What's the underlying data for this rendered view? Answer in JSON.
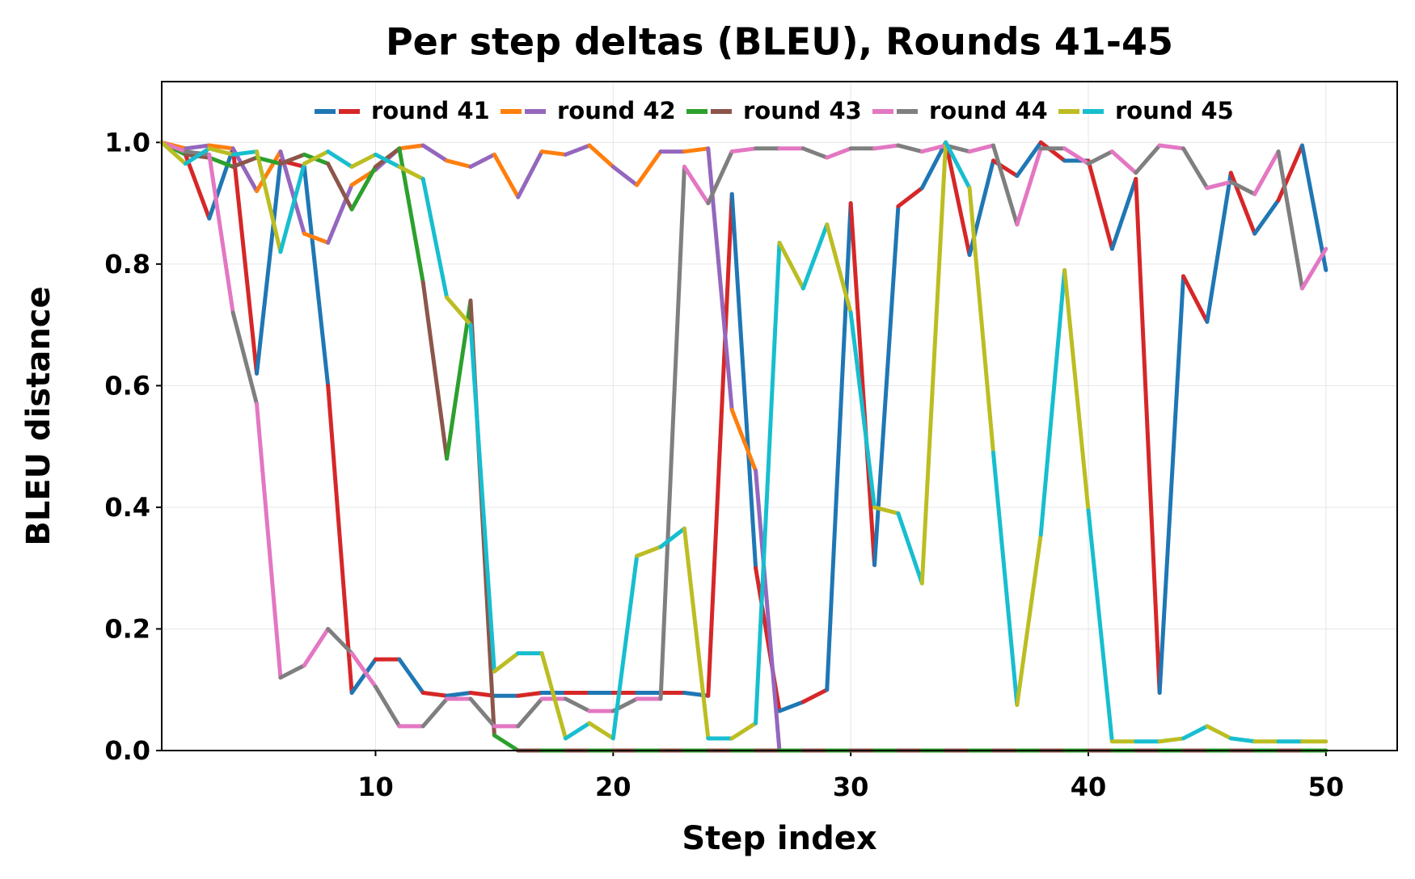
{
  "chart_data": {
    "type": "line",
    "title": "Per step deltas (BLEU), Rounds 41-45",
    "xlabel": "Step index",
    "ylabel": "BLEU distance",
    "x": [
      1,
      2,
      3,
      4,
      5,
      6,
      7,
      8,
      9,
      10,
      11,
      12,
      13,
      14,
      15,
      16,
      17,
      18,
      19,
      20,
      21,
      22,
      23,
      24,
      25,
      26,
      27,
      28,
      29,
      30,
      31,
      32,
      33,
      34,
      35,
      36,
      37,
      38,
      39,
      40,
      41,
      42,
      43,
      44,
      45,
      46,
      47,
      48,
      49,
      50
    ],
    "xlim": [
      1,
      53
    ],
    "xticks": [
      10,
      20,
      30,
      40,
      50
    ],
    "ylim": [
      0,
      1.1
    ],
    "yticks": [
      {
        "value": 0,
        "label": "0.0"
      },
      0.2,
      0.4,
      0.6,
      0.8,
      {
        "value": 1,
        "label": "1.0"
      }
    ],
    "grid": true,
    "legend": "upper center",
    "series": [
      {
        "name": "round 41",
        "colors": [
          "#1f77b4",
          "#d62728"
        ],
        "values": [
          1.0,
          0.98,
          0.875,
          0.99,
          0.62,
          0.97,
          0.96,
          0.6,
          0.095,
          0.15,
          0.15,
          0.095,
          0.09,
          0.095,
          0.09,
          0.09,
          0.095,
          0.095,
          0.095,
          0.095,
          0.095,
          0.095,
          0.095,
          0.09,
          0.915,
          0.3,
          0.065,
          0.08,
          0.1,
          0.9,
          0.305,
          0.895,
          0.925,
          1.0,
          0.815,
          0.97,
          0.945,
          1.0,
          0.97,
          0.97,
          0.825,
          0.94,
          0.095,
          0.78,
          0.705,
          0.95,
          0.85,
          0.905,
          0.995,
          0.79
        ]
      },
      {
        "name": "round 42",
        "colors": [
          "#ff7f0e",
          "#9467bd"
        ],
        "values": [
          1.0,
          0.99,
          0.995,
          0.99,
          0.92,
          0.985,
          0.85,
          0.835,
          0.93,
          0.955,
          0.99,
          0.995,
          0.97,
          0.96,
          0.98,
          0.91,
          0.985,
          0.98,
          0.995,
          0.96,
          0.93,
          0.985,
          0.985,
          0.99,
          0.56,
          0.46,
          0,
          0,
          0,
          0,
          0,
          0,
          0,
          0,
          0,
          0,
          0,
          0,
          0,
          0,
          0,
          0,
          0,
          0,
          0,
          0,
          0,
          0,
          0,
          0
        ]
      },
      {
        "name": "round 43",
        "colors": [
          "#2ca02c",
          "#8c564b"
        ],
        "values": [
          1.0,
          0.98,
          0.975,
          0.96,
          0.975,
          0.965,
          0.98,
          0.965,
          0.89,
          0.96,
          0.99,
          0.77,
          0.48,
          0.74,
          0.025,
          0,
          0,
          0,
          0,
          0,
          0,
          0,
          0,
          0,
          0,
          0,
          0,
          0,
          0,
          0,
          0,
          0,
          0,
          0,
          0,
          0,
          0,
          0,
          0,
          0,
          0,
          0,
          0,
          0,
          0,
          0,
          0,
          0,
          0,
          0
        ]
      },
      {
        "name": "round 44",
        "colors": [
          "#e377c2",
          "#7f7f7f"
        ],
        "values": [
          1.0,
          0.985,
          0.98,
          0.72,
          0.57,
          0.12,
          0.14,
          0.2,
          0.16,
          0.105,
          0.04,
          0.04,
          0.085,
          0.085,
          0.04,
          0.04,
          0.085,
          0.085,
          0.065,
          0.065,
          0.085,
          0.085,
          0.96,
          0.9,
          0.985,
          0.99,
          0.99,
          0.99,
          0.975,
          0.99,
          0.99,
          0.995,
          0.985,
          0.995,
          0.985,
          0.995,
          0.865,
          0.99,
          0.99,
          0.965,
          0.985,
          0.95,
          0.995,
          0.99,
          0.925,
          0.935,
          0.915,
          0.985,
          0.76,
          0.825
        ]
      },
      {
        "name": "round 45",
        "colors": [
          "#bcbd22",
          "#17becf"
        ],
        "values": [
          1.0,
          0.965,
          0.99,
          0.98,
          0.985,
          0.82,
          0.965,
          0.985,
          0.96,
          0.98,
          0.96,
          0.94,
          0.745,
          0.7,
          0.13,
          0.16,
          0.16,
          0.02,
          0.045,
          0.02,
          0.32,
          0.335,
          0.365,
          0.02,
          0.02,
          0.045,
          0.835,
          0.76,
          0.865,
          0.72,
          0.4,
          0.39,
          0.275,
          1.0,
          0.925,
          0.49,
          0.075,
          0.355,
          0.79,
          0.395,
          0.015,
          0.015,
          0.015,
          0.02,
          0.04,
          0.02,
          0.015,
          0.015,
          0.015,
          0.015
        ]
      }
    ]
  }
}
